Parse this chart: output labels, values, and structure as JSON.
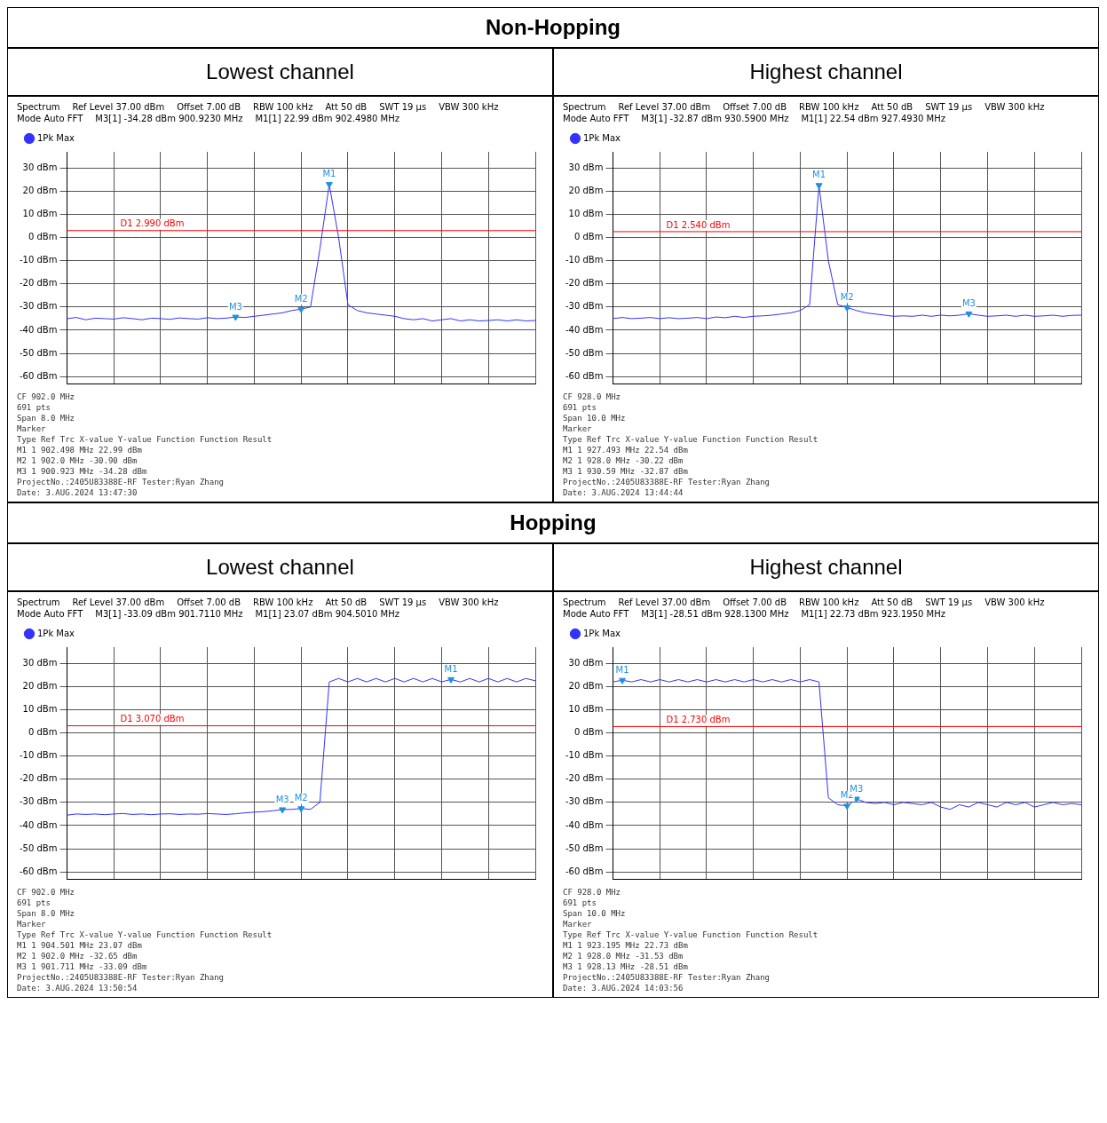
{
  "chart_data": [
    {
      "type": "other",
      "title": "Non-Hopping"
    },
    {
      "type": "line",
      "title": "Lowest channel",
      "categories": [
        null,
        null,
        null,
        null,
        null,
        null,
        null,
        null,
        null,
        null,
        null,
        null,
        null,
        null,
        null,
        null,
        null,
        null,
        null,
        null,
        null,
        null,
        null,
        null,
        null,
        null,
        null,
        null,
        null,
        null,
        null,
        null,
        null,
        null,
        null,
        null,
        null,
        null,
        null,
        null,
        null,
        null,
        null,
        null,
        null,
        null,
        null,
        null,
        null,
        null,
        null
      ],
      "ylim": [
        -63,
        37
      ],
      "yticks": [
        {
          "value": 30,
          "label": "30 dBm"
        },
        {
          "value": 20,
          "label": "20 dBm"
        },
        {
          "value": 10,
          "label": "10 dBm"
        },
        {
          "value": 0,
          "label": "0 dBm"
        },
        {
          "value": -10,
          "label": "-10 dBm"
        },
        {
          "value": -20,
          "label": "-20 dBm"
        },
        {
          "value": -30,
          "label": "-30 dBm"
        },
        {
          "value": -40,
          "label": "-40 dBm"
        },
        {
          "value": -50,
          "label": "-50 dBm"
        },
        {
          "value": -60,
          "label": "-60 dBm"
        }
      ],
      "tick_labels": "y",
      "grid": true,
      "legend": "top left",
      "marker": "none",
      "line_style": "solid",
      "series": [
        {
          "name": "1Pk Max",
          "color": "#3333ff",
          "values": [
            -35,
            -34.5,
            -35.5,
            -34.8,
            -35,
            -35.2,
            -34.6,
            -35,
            -35.5,
            -34.8,
            -35,
            -35.3,
            -34.7,
            -35,
            -35.2,
            -34.6,
            -35,
            -34.8,
            -34.28,
            -34.5,
            -34,
            -33.5,
            -33,
            -32.5,
            -31.5,
            -30.9,
            -30,
            -5,
            22.99,
            0,
            -29,
            -31.5,
            -32.5,
            -33,
            -33.5,
            -34,
            -35,
            -35.5,
            -35,
            -36,
            -35.5,
            -35,
            -36,
            -35.5,
            -36,
            -35.8,
            -35.5,
            -36,
            -35.5,
            -36,
            -35.8
          ],
          "value_labels": [
            null,
            null,
            null,
            null,
            null,
            null,
            null,
            null,
            null,
            null,
            null,
            null,
            null,
            null,
            null,
            null,
            null,
            null,
            "M3",
            null,
            null,
            null,
            null,
            null,
            null,
            "M2",
            null,
            null,
            "M1",
            null,
            null,
            null,
            null,
            null,
            null,
            null,
            null,
            null,
            null,
            null,
            null,
            null,
            null,
            null,
            null,
            null,
            null,
            null,
            null,
            null,
            null
          ]
        }
      ],
      "ref_lines": [
        {
          "axis": "y",
          "value": 2.99,
          "label": "D1 2.990 dBm",
          "color": "#ff0000"
        }
      ],
      "annotations": [
        "Spectrum",
        "Ref Level 37.00 dBm",
        "Offset 7.00 dB",
        "RBW 100 kHz",
        "Att 50 dB",
        "SWT 19 µs",
        "VBW 300 kHz",
        "Mode Auto FFT",
        "M3[1] -34.28 dBm 900.9230 MHz",
        "M1[1] 22.99 dBm 902.4980 MHz",
        "CF 902.0 MHz",
        "691 pts",
        "Span 8.0 MHz",
        "Marker",
        "Type Ref Trc X-value Y-value Function Function Result",
        "M1 1 902.498 MHz 22.99 dBm",
        "M2 1 902.0 MHz -30.90 dBm",
        "M3 1 900.923 MHz -34.28 dBm",
        "ProjectNo.:2405U83388E-RF Tester:Ryan Zhang",
        "Date: 3.AUG.2024 13:47:30"
      ]
    },
    {
      "type": "line",
      "title": "Highest channel",
      "categories": [
        null,
        null,
        null,
        null,
        null,
        null,
        null,
        null,
        null,
        null,
        null,
        null,
        null,
        null,
        null,
        null,
        null,
        null,
        null,
        null,
        null,
        null,
        null,
        null,
        null,
        null,
        null,
        null,
        null,
        null,
        null,
        null,
        null,
        null,
        null,
        null,
        null,
        null,
        null,
        null,
        null,
        null,
        null,
        null,
        null,
        null,
        null,
        null,
        null,
        null,
        null
      ],
      "ylim": [
        -63,
        37
      ],
      "yticks": [
        {
          "value": 30,
          "label": "30 dBm"
        },
        {
          "value": 20,
          "label": "20 dBm"
        },
        {
          "value": 10,
          "label": "10 dBm"
        },
        {
          "value": 0,
          "label": "0 dBm"
        },
        {
          "value": -10,
          "label": "-10 dBm"
        },
        {
          "value": -20,
          "label": "-20 dBm"
        },
        {
          "value": -30,
          "label": "-30 dBm"
        },
        {
          "value": -40,
          "label": "-40 dBm"
        },
        {
          "value": -50,
          "label": "-50 dBm"
        },
        {
          "value": -60,
          "label": "-60 dBm"
        }
      ],
      "tick_labels": "y",
      "grid": true,
      "legend": "top left",
      "marker": "none",
      "line_style": "solid",
      "series": [
        {
          "name": "1Pk Max",
          "color": "#3333ff",
          "values": [
            -35,
            -34.5,
            -35,
            -34.8,
            -34.5,
            -35,
            -34.6,
            -35,
            -34.8,
            -34.5,
            -35,
            -34.3,
            -34.6,
            -34,
            -34.5,
            -34,
            -33.8,
            -33.5,
            -33,
            -32.5,
            -31.5,
            -29,
            22.54,
            -10,
            -29,
            -30.22,
            -31.5,
            -32.5,
            -33,
            -33.5,
            -34,
            -33.8,
            -34,
            -33.5,
            -34,
            -33.5,
            -33.8,
            -33.5,
            -32.87,
            -33.5,
            -34,
            -33.8,
            -33.5,
            -34,
            -33.5,
            -34,
            -33.8,
            -33.5,
            -34,
            -33.6,
            -33.5
          ],
          "value_labels": [
            null,
            null,
            null,
            null,
            null,
            null,
            null,
            null,
            null,
            null,
            null,
            null,
            null,
            null,
            null,
            null,
            null,
            null,
            null,
            null,
            null,
            null,
            "M1",
            null,
            null,
            "M2",
            null,
            null,
            null,
            null,
            null,
            null,
            null,
            null,
            null,
            null,
            null,
            null,
            "M3",
            null,
            null,
            null,
            null,
            null,
            null,
            null,
            null,
            null,
            null,
            null,
            null
          ]
        }
      ],
      "ref_lines": [
        {
          "axis": "y",
          "value": 2.54,
          "label": "D1 2.540 dBm",
          "color": "#ff0000"
        }
      ],
      "annotations": [
        "Spectrum",
        "Ref Level 37.00 dBm",
        "Offset 7.00 dB",
        "RBW 100 kHz",
        "Att 50 dB",
        "SWT 19 µs",
        "VBW 300 kHz",
        "Mode Auto FFT",
        "M3[1] -32.87 dBm 930.5900 MHz",
        "M1[1] 22.54 dBm 927.4930 MHz",
        "CF 928.0 MHz",
        "691 pts",
        "Span 10.0 MHz",
        "Marker",
        "Type Ref Trc X-value Y-value Function Function Result",
        "M1 1 927.493 MHz 22.54 dBm",
        "M2 1 928.0 MHz -30.22 dBm",
        "M3 1 930.59 MHz -32.87 dBm",
        "ProjectNo.:2405U83388E-RF Tester:Ryan Zhang",
        "Date: 3.AUG.2024 13:44:44"
      ]
    },
    {
      "type": "other",
      "title": "Hopping"
    },
    {
      "type": "line",
      "title": "Lowest channel",
      "categories": [
        null,
        null,
        null,
        null,
        null,
        null,
        null,
        null,
        null,
        null,
        null,
        null,
        null,
        null,
        null,
        null,
        null,
        null,
        null,
        null,
        null,
        null,
        null,
        null,
        null,
        null,
        null,
        null,
        null,
        null,
        null,
        null,
        null,
        null,
        null,
        null,
        null,
        null,
        null,
        null,
        null,
        null,
        null,
        null,
        null,
        null,
        null,
        null,
        null,
        null,
        null
      ],
      "ylim": [
        -63,
        37
      ],
      "yticks": [
        {
          "value": 30,
          "label": "30 dBm"
        },
        {
          "value": 20,
          "label": "20 dBm"
        },
        {
          "value": 10,
          "label": "10 dBm"
        },
        {
          "value": 0,
          "label": "0 dBm"
        },
        {
          "value": -10,
          "label": "-10 dBm"
        },
        {
          "value": -20,
          "label": "-20 dBm"
        },
        {
          "value": -30,
          "label": "-30 dBm"
        },
        {
          "value": -40,
          "label": "-40 dBm"
        },
        {
          "value": -50,
          "label": "-50 dBm"
        },
        {
          "value": -60,
          "label": "-60 dBm"
        }
      ],
      "tick_labels": "y",
      "grid": true,
      "legend": "top left",
      "marker": "none",
      "line_style": "solid",
      "series": [
        {
          "name": "1Pk Max",
          "color": "#3333ff",
          "values": [
            -35.5,
            -35,
            -35.2,
            -35,
            -35.3,
            -35,
            -34.8,
            -35.2,
            -35,
            -35.3,
            -35,
            -34.9,
            -35.2,
            -35,
            -35.1,
            -34.8,
            -35,
            -35.2,
            -34.9,
            -34.5,
            -34.2,
            -34,
            -33.6,
            -33.09,
            -33,
            -32.65,
            -33,
            -30,
            22,
            23.5,
            22,
            23.5,
            22,
            23.5,
            22,
            23.5,
            22,
            23.5,
            22,
            23.5,
            22,
            23.07,
            22,
            23.5,
            22,
            23.5,
            22,
            23.5,
            22,
            23.5,
            22.5
          ],
          "value_labels": [
            null,
            null,
            null,
            null,
            null,
            null,
            null,
            null,
            null,
            null,
            null,
            null,
            null,
            null,
            null,
            null,
            null,
            null,
            null,
            null,
            null,
            null,
            null,
            "M3",
            null,
            "M2",
            null,
            null,
            null,
            null,
            null,
            null,
            null,
            null,
            null,
            null,
            null,
            null,
            null,
            null,
            null,
            "M1",
            null,
            null,
            null,
            null,
            null,
            null,
            null,
            null,
            null
          ]
        }
      ],
      "ref_lines": [
        {
          "axis": "y",
          "value": 3.07,
          "label": "D1 3.070 dBm",
          "color": "#ff0000"
        }
      ],
      "annotations": [
        "Spectrum",
        "Ref Level 37.00 dBm",
        "Offset 7.00 dB",
        "RBW 100 kHz",
        "Att 50 dB",
        "SWT 19 µs",
        "VBW 300 kHz",
        "Mode Auto FFT",
        "M3[1] -33.09 dBm 901.7110 MHz",
        "M1[1] 23.07 dBm 904.5010 MHz",
        "CF 902.0 MHz",
        "691 pts",
        "Span 8.0 MHz",
        "Marker",
        "Type Ref Trc X-value Y-value Function Function Result",
        "M1 1 904.501 MHz 23.07 dBm",
        "M2 1 902.0 MHz -32.65 dBm",
        "M3 1 901.711 MHz -33.09 dBm",
        "ProjectNo.:2405U83388E-RF Tester:Ryan Zhang",
        "Date: 3.AUG.2024 13:50:54"
      ]
    },
    {
      "type": "line",
      "title": "Highest channel",
      "categories": [
        null,
        null,
        null,
        null,
        null,
        null,
        null,
        null,
        null,
        null,
        null,
        null,
        null,
        null,
        null,
        null,
        null,
        null,
        null,
        null,
        null,
        null,
        null,
        null,
        null,
        null,
        null,
        null,
        null,
        null,
        null,
        null,
        null,
        null,
        null,
        null,
        null,
        null,
        null,
        null,
        null,
        null,
        null,
        null,
        null,
        null,
        null,
        null,
        null,
        null,
        null
      ],
      "ylim": [
        -63,
        37
      ],
      "yticks": [
        {
          "value": 30,
          "label": "30 dBm"
        },
        {
          "value": 20,
          "label": "20 dBm"
        },
        {
          "value": 10,
          "label": "10 dBm"
        },
        {
          "value": 0,
          "label": "0 dBm"
        },
        {
          "value": -10,
          "label": "-10 dBm"
        },
        {
          "value": -20,
          "label": "-20 dBm"
        },
        {
          "value": -30,
          "label": "-30 dBm"
        },
        {
          "value": -40,
          "label": "-40 dBm"
        },
        {
          "value": -50,
          "label": "-50 dBm"
        },
        {
          "value": -60,
          "label": "-60 dBm"
        }
      ],
      "tick_labels": "y",
      "grid": true,
      "legend": "top left",
      "marker": "none",
      "line_style": "solid",
      "series": [
        {
          "name": "1Pk Max",
          "color": "#3333ff",
          "values": [
            22,
            22.73,
            22,
            23,
            22,
            23,
            22,
            23,
            22,
            23,
            22,
            23,
            22,
            23,
            22,
            23,
            22,
            23,
            22,
            23,
            22,
            23,
            22,
            -28,
            -31,
            -31.53,
            -28.51,
            -30,
            -30.5,
            -30,
            -31,
            -30,
            -30.5,
            -31,
            -30,
            -32,
            -33,
            -31,
            -32,
            -30,
            -31,
            -32,
            -30,
            -31,
            -30,
            -32,
            -31,
            -30,
            -31,
            -30.5,
            -31
          ],
          "value_labels": [
            null,
            "M1",
            null,
            null,
            null,
            null,
            null,
            null,
            null,
            null,
            null,
            null,
            null,
            null,
            null,
            null,
            null,
            null,
            null,
            null,
            null,
            null,
            null,
            null,
            null,
            "M2",
            "M3",
            null,
            null,
            null,
            null,
            null,
            null,
            null,
            null,
            null,
            null,
            null,
            null,
            null,
            null,
            null,
            null,
            null,
            null,
            null,
            null,
            null,
            null,
            null,
            null
          ]
        }
      ],
      "ref_lines": [
        {
          "axis": "y",
          "value": 2.73,
          "label": "D1 2.730 dBm",
          "color": "#ff0000"
        }
      ],
      "annotations": [
        "Spectrum",
        "Ref Level 37.00 dBm",
        "Offset 7.00 dB",
        "RBW 100 kHz",
        "Att 50 dB",
        "SWT 19 µs",
        "VBW 300 kHz",
        "Mode Auto FFT",
        "M3[1] -28.51 dBm 928.1300 MHz",
        "M1[1] 22.73 dBm 923.1950 MHz",
        "CF 928.0 MHz",
        "691 pts",
        "Span 10.0 MHz",
        "Marker",
        "Type Ref Trc X-value Y-value Function Function Result",
        "M1 1 923.195 MHz 22.73 dBm",
        "M2 1 928.0 MHz -31.53 dBm",
        "M3 1 928.13 MHz -28.51 dBm",
        "ProjectNo.:2405U83388E-RF Tester:Ryan Zhang",
        "Date: 3.AUG.2024 14:03:56"
      ]
    }
  ]
}
